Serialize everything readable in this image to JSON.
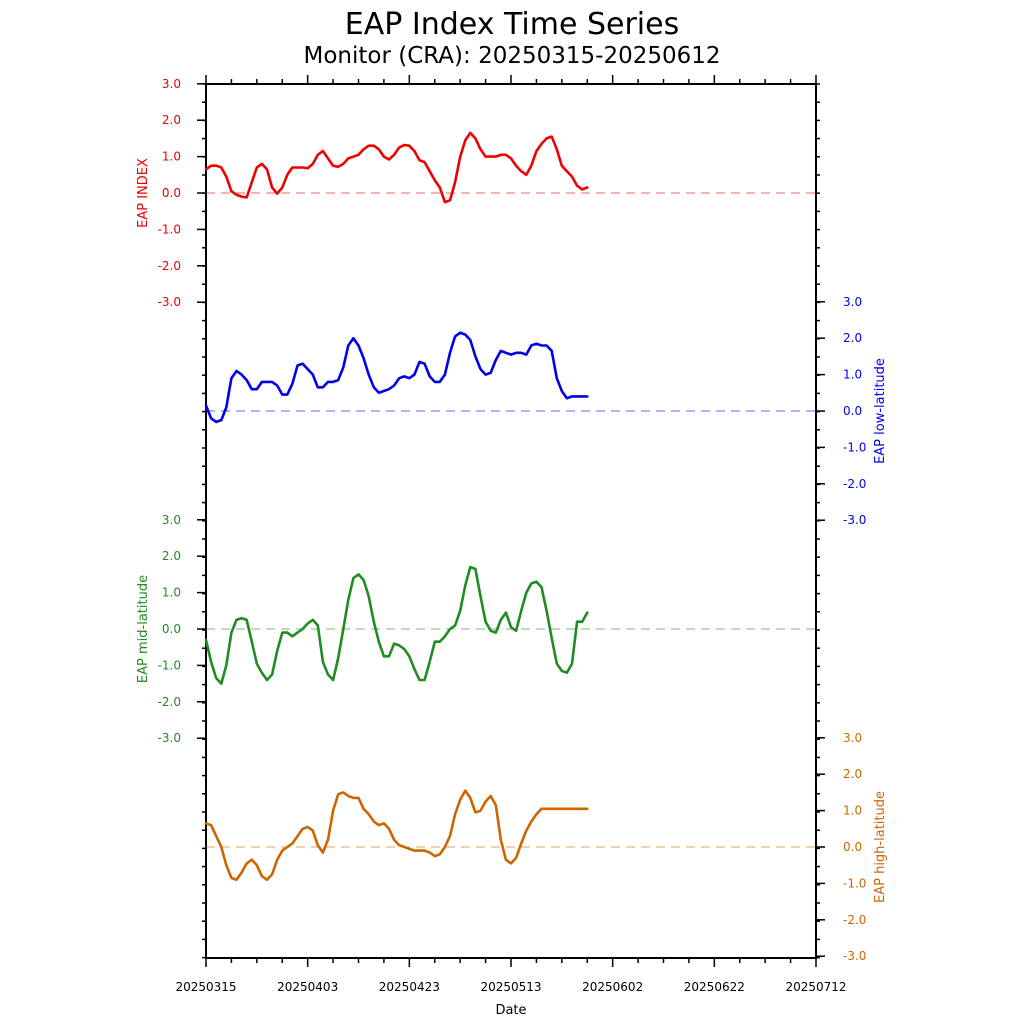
{
  "chart_data": {
    "type": "line",
    "title": "EAP Index Time Series",
    "subtitle": "Monitor (CRA): 20250315-20250612",
    "xlabel": "Date",
    "x_ticks": [
      "20250315",
      "20250403",
      "20250423",
      "20250513",
      "20250602",
      "20250622",
      "20250712"
    ],
    "x_range_days": [
      0,
      120
    ],
    "series": [
      {
        "name": "EAP INDEX",
        "color": "#ee0000",
        "axis_side": "left",
        "ylim": [
          -3,
          3
        ],
        "tick_labels": [
          "3.0",
          "2.0",
          "1.0",
          "0.0",
          "-1.0",
          "-2.0",
          "-3.0"
        ],
        "x": [
          0,
          1,
          2,
          3,
          4,
          5,
          6,
          7,
          8,
          9,
          10,
          11,
          12,
          13,
          14,
          15,
          16,
          17,
          18,
          19,
          20,
          21,
          22,
          23,
          24,
          25,
          26,
          27,
          28,
          29,
          30,
          31,
          32,
          33,
          34,
          35,
          36,
          37,
          38,
          39,
          40,
          41,
          42,
          43,
          44,
          45,
          46,
          47,
          48,
          49,
          50,
          51,
          52,
          53,
          54,
          55,
          56,
          57,
          58,
          59,
          60,
          61,
          62,
          63,
          64,
          65,
          66,
          67,
          68,
          69,
          70,
          71,
          72,
          73,
          74,
          75,
          76,
          77,
          78,
          79,
          80,
          81,
          82,
          83,
          84,
          85,
          86,
          87,
          88,
          89,
          90
        ],
        "values": [
          0.65,
          0.75,
          0.75,
          0.7,
          0.45,
          0.05,
          -0.05,
          -0.1,
          -0.12,
          0.3,
          0.7,
          0.8,
          0.65,
          0.15,
          -0.02,
          0.15,
          0.5,
          0.7,
          0.7,
          0.7,
          0.68,
          0.8,
          1.05,
          1.15,
          0.95,
          0.75,
          0.72,
          0.8,
          0.95,
          1.0,
          1.05,
          1.2,
          1.3,
          1.3,
          1.2,
          1.0,
          0.92,
          1.05,
          1.25,
          1.32,
          1.3,
          1.15,
          0.9,
          0.85,
          0.6,
          0.35,
          0.15,
          -0.25,
          -0.2,
          0.3,
          1.0,
          1.45,
          1.65,
          1.5,
          1.2,
          1.0,
          1.0,
          1.0,
          1.05,
          1.05,
          0.95,
          0.75,
          0.6,
          0.5,
          0.75,
          1.15,
          1.35,
          1.5,
          1.55,
          1.2,
          0.75,
          0.6,
          0.45,
          0.2,
          0.1,
          0.15,
          0.2,
          0.2,
          0.2,
          0.2,
          0.2,
          0.2,
          0.2,
          0.2,
          0.2,
          0.2,
          0.2,
          0.2,
          0.2,
          0.2,
          0.2
        ]
      },
      {
        "name": "EAP low-latitude",
        "color": "#0000ee",
        "axis_side": "right",
        "ylim": [
          -3,
          3
        ],
        "tick_labels": [
          "3.0",
          "2.0",
          "1.0",
          "0.0",
          "-1.0",
          "-2.0",
          "-3.0"
        ],
        "x": [
          0,
          1,
          2,
          3,
          4,
          5,
          6,
          7,
          8,
          9,
          10,
          11,
          12,
          13,
          14,
          15,
          16,
          17,
          18,
          19,
          20,
          21,
          22,
          23,
          24,
          25,
          26,
          27,
          28,
          29,
          30,
          31,
          32,
          33,
          34,
          35,
          36,
          37,
          38,
          39,
          40,
          41,
          42,
          43,
          44,
          45,
          46,
          47,
          48,
          49,
          50,
          51,
          52,
          53,
          54,
          55,
          56,
          57,
          58,
          59,
          60,
          61,
          62,
          63,
          64,
          65,
          66,
          67,
          68,
          69,
          70,
          71,
          72,
          73,
          74,
          75,
          76,
          77,
          78,
          79,
          80,
          81,
          82,
          83,
          84,
          85,
          86,
          87,
          88,
          89,
          90
        ],
        "values": [
          0.15,
          -0.2,
          -0.3,
          -0.25,
          0.1,
          0.9,
          1.1,
          1.0,
          0.85,
          0.6,
          0.6,
          0.8,
          0.8,
          0.8,
          0.7,
          0.45,
          0.45,
          0.75,
          1.25,
          1.3,
          1.15,
          1.0,
          0.65,
          0.65,
          0.8,
          0.8,
          0.85,
          1.2,
          1.8,
          2.0,
          1.8,
          1.45,
          1.0,
          0.65,
          0.5,
          0.55,
          0.6,
          0.7,
          0.9,
          0.95,
          0.9,
          1.0,
          1.35,
          1.3,
          0.95,
          0.8,
          0.8,
          1.0,
          1.6,
          2.05,
          2.15,
          2.1,
          1.95,
          1.5,
          1.15,
          1.0,
          1.05,
          1.4,
          1.65,
          1.6,
          1.55,
          1.6,
          1.6,
          1.55,
          1.8,
          1.85,
          1.8,
          1.8,
          1.65,
          0.9,
          0.55,
          0.35,
          0.4,
          0.4,
          0.4,
          0.4,
          0.4,
          0.4,
          0.4,
          0.4,
          0.4,
          0.4,
          0.4,
          0.4,
          0.4,
          0.4,
          0.4,
          0.4,
          0.4,
          0.4,
          0.4
        ]
      },
      {
        "name": "EAP mid-latitude",
        "color": "#228b22",
        "axis_side": "left",
        "ylim": [
          -3,
          3
        ],
        "tick_labels": [
          "3.0",
          "2.0",
          "1.0",
          "0.0",
          "-1.0",
          "-2.0",
          "-3.0"
        ],
        "x": [
          0,
          1,
          2,
          3,
          4,
          5,
          6,
          7,
          8,
          9,
          10,
          11,
          12,
          13,
          14,
          15,
          16,
          17,
          18,
          19,
          20,
          21,
          22,
          23,
          24,
          25,
          26,
          27,
          28,
          29,
          30,
          31,
          32,
          33,
          34,
          35,
          36,
          37,
          38,
          39,
          40,
          41,
          42,
          43,
          44,
          45,
          46,
          47,
          48,
          49,
          50,
          51,
          52,
          53,
          54,
          55,
          56,
          57,
          58,
          59,
          60,
          61,
          62,
          63,
          64,
          65,
          66,
          67,
          68,
          69,
          70,
          71,
          72,
          73,
          74,
          75,
          76,
          77,
          78,
          79,
          80,
          81,
          82,
          83,
          84,
          85,
          86,
          87,
          88,
          89,
          90
        ],
        "values": [
          -0.3,
          -0.9,
          -1.35,
          -1.5,
          -1.0,
          -0.1,
          0.25,
          0.3,
          0.25,
          -0.35,
          -0.95,
          -1.2,
          -1.4,
          -1.25,
          -0.6,
          -0.1,
          -0.1,
          -0.2,
          -0.1,
          0.0,
          0.15,
          0.25,
          0.1,
          -0.9,
          -1.25,
          -1.4,
          -0.8,
          0.0,
          0.8,
          1.4,
          1.5,
          1.35,
          0.9,
          0.2,
          -0.35,
          -0.75,
          -0.75,
          -0.4,
          -0.45,
          -0.55,
          -0.75,
          -1.1,
          -1.4,
          -1.4,
          -0.9,
          -0.35,
          -0.35,
          -0.2,
          0.0,
          0.1,
          0.5,
          1.2,
          1.7,
          1.65,
          0.9,
          0.2,
          -0.05,
          -0.1,
          0.25,
          0.45,
          0.05,
          -0.05,
          0.5,
          1.0,
          1.25,
          1.3,
          1.15,
          0.5,
          -0.25,
          -0.95,
          -1.15,
          -1.2,
          -0.95,
          0.2,
          0.2,
          0.45,
          1.05,
          1.2,
          1.1,
          1.1,
          1.1,
          1.1,
          1.1,
          1.1,
          1.1,
          1.1,
          1.1,
          1.1,
          1.1,
          1.1,
          1.1
        ]
      },
      {
        "name": "EAP high-latitude",
        "color": "#cc6600",
        "axis_side": "right",
        "ylim": [
          -3,
          3
        ],
        "tick_labels": [
          "3.0",
          "2.0",
          "1.0",
          "0.0",
          "-1.0",
          "-2.0",
          "-3.0"
        ],
        "x": [
          0,
          1,
          2,
          3,
          4,
          5,
          6,
          7,
          8,
          9,
          10,
          11,
          12,
          13,
          14,
          15,
          16,
          17,
          18,
          19,
          20,
          21,
          22,
          23,
          24,
          25,
          26,
          27,
          28,
          29,
          30,
          31,
          32,
          33,
          34,
          35,
          36,
          37,
          38,
          39,
          40,
          41,
          42,
          43,
          44,
          45,
          46,
          47,
          48,
          49,
          50,
          51,
          52,
          53,
          54,
          55,
          56,
          57,
          58,
          59,
          60,
          61,
          62,
          63,
          64,
          65,
          66,
          67,
          68,
          69,
          70,
          71,
          72,
          73,
          74,
          75,
          76,
          77,
          78,
          79,
          80,
          81,
          82,
          83,
          84,
          85,
          86,
          87,
          88,
          89,
          90
        ],
        "values": [
          0.65,
          0.6,
          0.3,
          0.0,
          -0.5,
          -0.85,
          -0.9,
          -0.7,
          -0.45,
          -0.35,
          -0.5,
          -0.8,
          -0.9,
          -0.75,
          -0.35,
          -0.1,
          0.0,
          0.1,
          0.3,
          0.5,
          0.55,
          0.45,
          0.05,
          -0.15,
          0.2,
          1.0,
          1.45,
          1.5,
          1.4,
          1.35,
          1.35,
          1.05,
          0.9,
          0.7,
          0.6,
          0.65,
          0.5,
          0.2,
          0.05,
          0.0,
          -0.05,
          -0.1,
          -0.1,
          -0.1,
          -0.15,
          -0.25,
          -0.2,
          0.0,
          0.3,
          0.9,
          1.3,
          1.55,
          1.35,
          0.95,
          1.0,
          1.25,
          1.4,
          1.15,
          0.2,
          -0.35,
          -0.45,
          -0.3,
          0.1,
          0.45,
          0.7,
          0.9,
          1.05,
          1.05,
          1.05,
          1.05,
          1.05,
          1.05,
          1.05,
          1.05,
          1.05,
          1.05,
          1.05,
          1.05,
          1.05,
          1.05,
          1.05,
          1.05,
          1.05,
          1.05,
          1.05,
          1.05,
          1.05,
          1.05,
          1.05,
          1.05,
          1.05
        ]
      }
    ],
    "reference_lines": [
      0,
      0,
      0,
      0
    ],
    "grid": false,
    "legend": "none"
  }
}
